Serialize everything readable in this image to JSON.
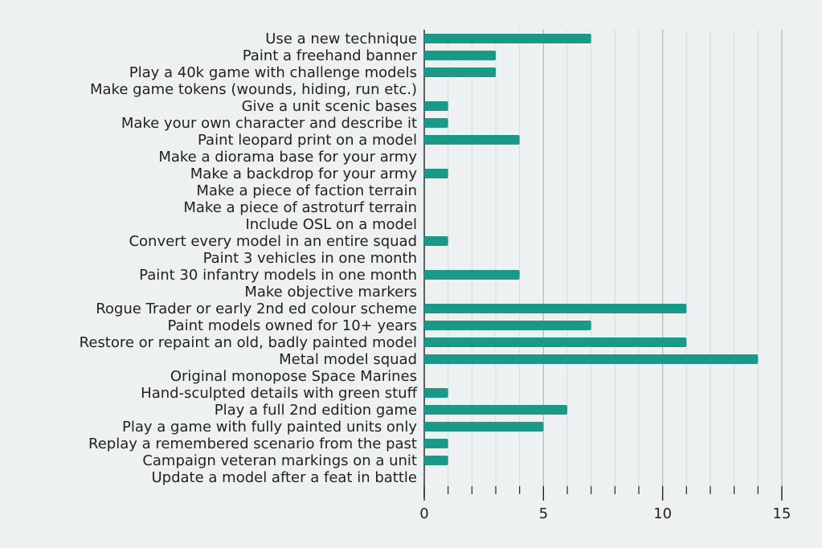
{
  "chart_data": {
    "type": "bar",
    "orientation": "horizontal",
    "categories": [
      "Use a new technique",
      "Paint a freehand banner",
      "Play a 40k game with challenge models",
      "Make game tokens (wounds, hiding, run etc.)",
      "Give a unit scenic bases",
      "Make your own character and describe it",
      "Paint leopard print on a model",
      "Make a diorama base for your army",
      "Make a backdrop for your army",
      "Make a piece of faction terrain",
      "Make a piece of astroturf terrain",
      "Include OSL on a model",
      "Convert every model in an entire squad",
      "Paint 3 vehicles in one month",
      "Paint 30 infantry models in one month",
      "Make objective markers",
      "Rogue Trader or early 2nd ed colour scheme",
      "Paint models owned for 10+ years",
      "Restore or repaint an old, badly painted model",
      "Metal model squad",
      "Original monopose Space Marines",
      "Hand-sculpted details with green stuff",
      "Play a full 2nd edition game",
      "Play a game with fully painted units only",
      "Replay a remembered scenario from the past",
      "Campaign veteran markings on a unit",
      "Update a model after a feat in battle"
    ],
    "values": [
      7,
      3,
      3,
      0,
      1,
      1,
      4,
      0,
      1,
      0,
      0,
      0,
      1,
      0,
      4,
      0,
      11,
      7,
      11,
      14,
      0,
      1,
      6,
      5,
      1,
      1,
      0
    ],
    "xlim": [
      0,
      15
    ],
    "major_ticks": [
      0,
      5,
      10,
      15
    ],
    "minor_tick_step": 1,
    "grid": true,
    "bar_color": "#1a9988",
    "background_color": "#edf1f2",
    "title": "",
    "xlabel": "",
    "ylabel": ""
  }
}
